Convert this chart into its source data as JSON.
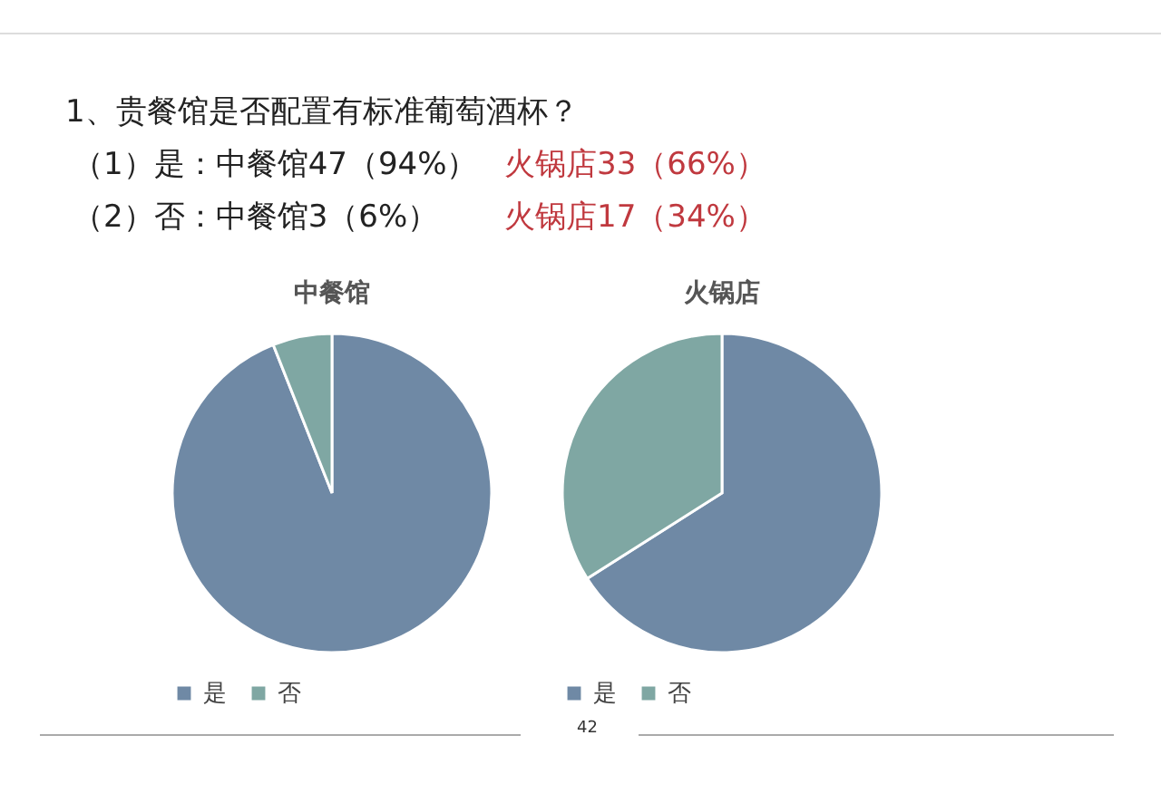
{
  "chart_data": [
    {
      "type": "pie",
      "title": "中餐馆",
      "categories": [
        "是",
        "否"
      ],
      "values": [
        94,
        6
      ],
      "colors": [
        "#6f89a5",
        "#7fa7a3"
      ],
      "legend": "bottom",
      "annotations": [
        "1、贵餐馆是否配置有标准葡萄酒杯？",
        "（1）是：中餐馆47（94%）",
        "火锅店33（66%）",
        "（2）否：中餐馆3（6%）",
        "火锅店17（34%）",
        "42"
      ]
    },
    {
      "type": "pie",
      "title": "火锅店",
      "categories": [
        "是",
        "否"
      ],
      "values": [
        66,
        34
      ],
      "colors": [
        "#6f89a5",
        "#7fa7a3"
      ],
      "legend": "bottom"
    }
  ]
}
